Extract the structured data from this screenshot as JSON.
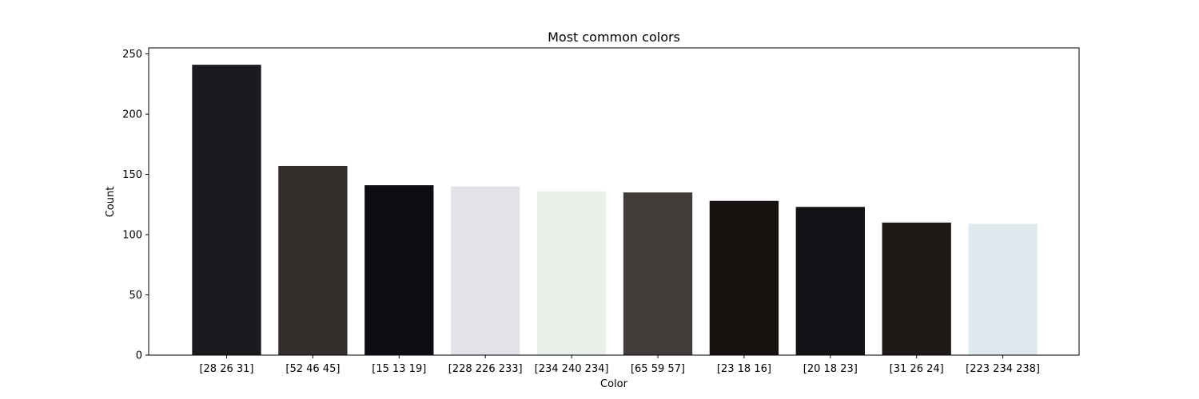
{
  "chart_data": {
    "type": "bar",
    "title": "Most common colors",
    "xlabel": "Color",
    "ylabel": "Count",
    "ylim": [
      0,
      255
    ],
    "yticks": [
      0,
      50,
      100,
      150,
      200,
      250
    ],
    "grid": false,
    "categories": [
      "[28 26 31]",
      "[52 46 45]",
      "[15 13 19]",
      "[228 226 233]",
      "[234 240 234]",
      "[65 59 57]",
      "[23 18 16]",
      "[20 18 23]",
      "[31 26 24]",
      "[223 234 238]"
    ],
    "values": [
      241,
      157,
      141,
      140,
      136,
      135,
      128,
      123,
      110,
      109
    ],
    "bar_colors": [
      "#1c1a1f",
      "#342e2d",
      "#0f0d13",
      "#e4e2e9",
      "#eaf0ea",
      "#413b39",
      "#171210",
      "#141217",
      "#1f1a18",
      "#dfeaee"
    ]
  }
}
